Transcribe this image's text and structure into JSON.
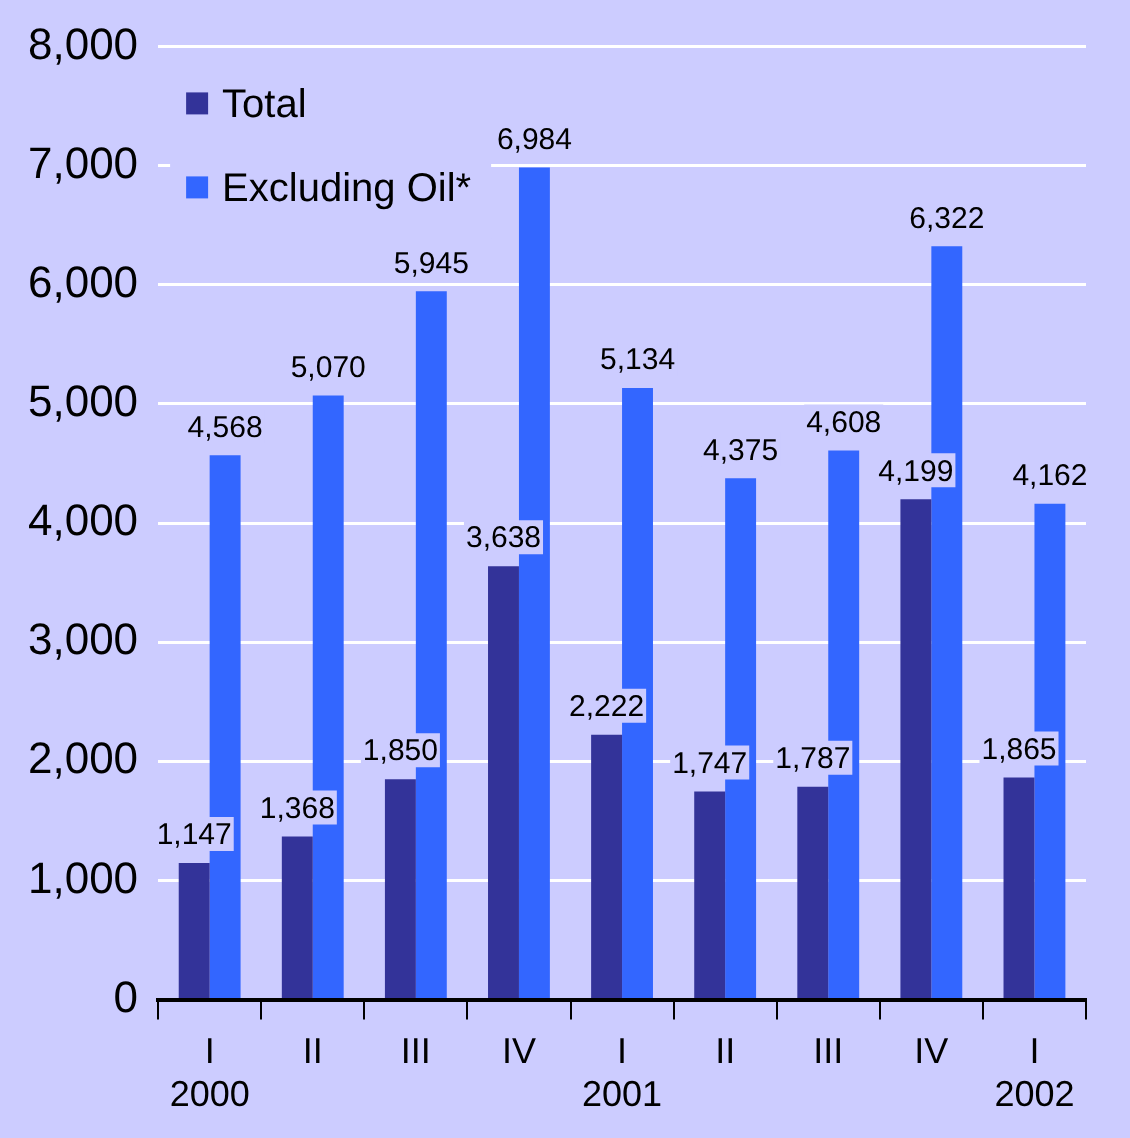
{
  "chart_data": {
    "type": "bar",
    "categories": [
      "I\n2000",
      "II",
      "III",
      "IV",
      "I\n2001",
      "II",
      "III",
      "IV",
      "I\n2002"
    ],
    "series": [
      {
        "name": "Total",
        "color": "#333399",
        "values": [
          1147,
          1368,
          1850,
          3638,
          2222,
          1747,
          1787,
          4199,
          1865
        ],
        "value_labels": [
          "1,147",
          "1,368",
          "1,850",
          "3,638",
          "2,222",
          "1,747",
          "1,787",
          "4,199",
          "1,865"
        ]
      },
      {
        "name": "Excluding Oil*",
        "color": "#3366ff",
        "values": [
          4568,
          5070,
          5945,
          6984,
          5134,
          4375,
          4608,
          6322,
          4162
        ],
        "value_labels": [
          "4,568",
          "5,070",
          "5,945",
          "6,984",
          "5,134",
          "4,375",
          "4,608",
          "6,322",
          "4,162"
        ]
      }
    ],
    "ylim": [
      0,
      8000
    ],
    "yticks": [
      0,
      {
        "value": 1000,
        "label": "1,000"
      },
      {
        "value": 2000,
        "label": "2,000"
      },
      {
        "value": 3000,
        "label": "3,000"
      },
      {
        "value": 4000,
        "label": "4,000"
      },
      {
        "value": 5000,
        "label": "5,000"
      },
      {
        "value": 6000,
        "label": "6,000"
      },
      {
        "value": 7000,
        "label": "7,000"
      },
      {
        "value": 8000,
        "label": "8,000"
      }
    ],
    "grid": "y",
    "legend": "top left"
  }
}
